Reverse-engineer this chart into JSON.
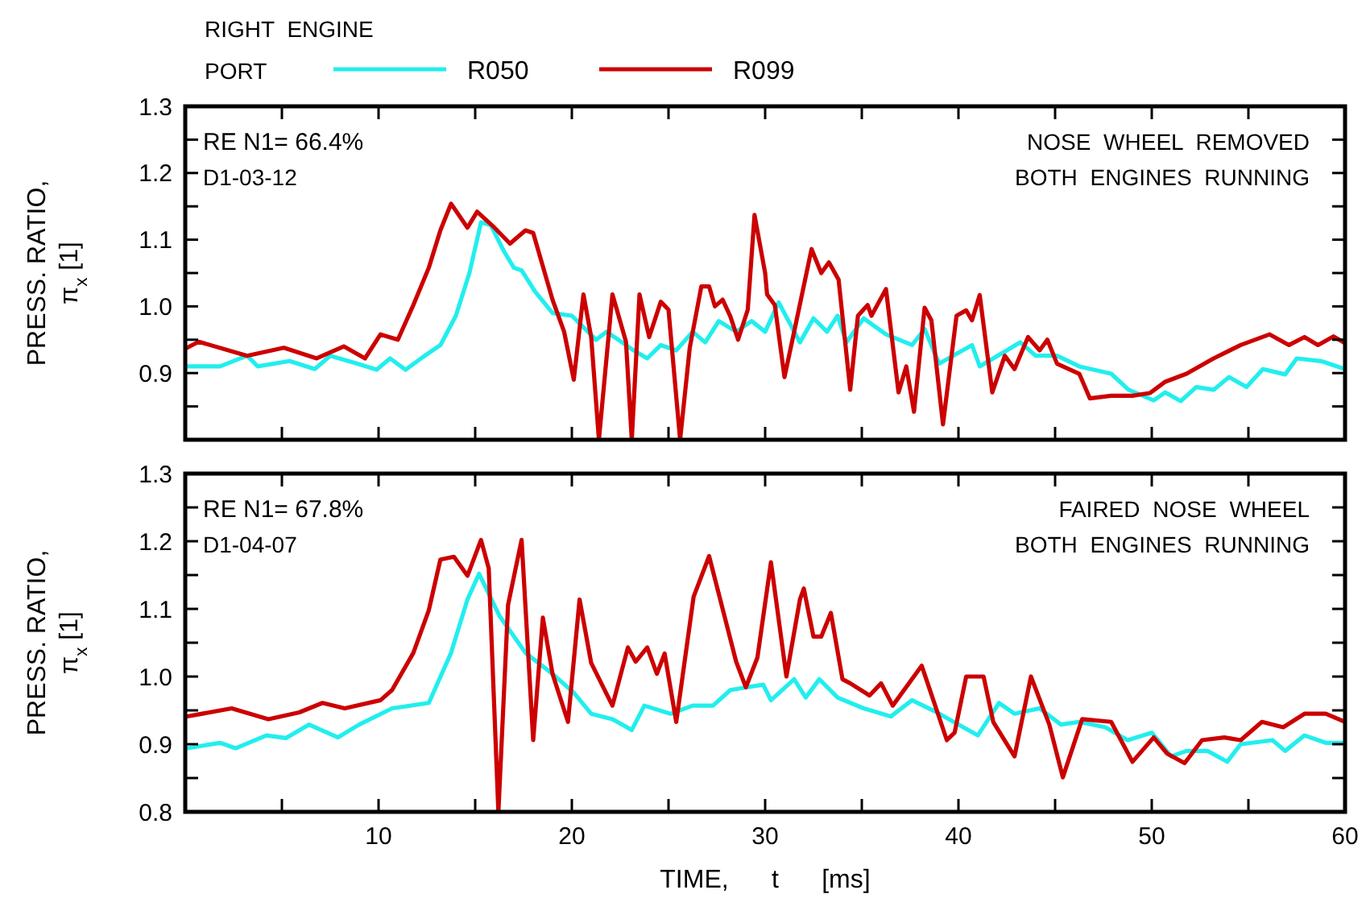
{
  "chart_data": [
    {
      "type": "line",
      "ylabel": "PRESS. RATIO,\nπ$_{x}$ [1]",
      "legend": "top",
      "legend_title": "RIGHT ENGINE\nPORT",
      "tick_labels": "y",
      "grid": false,
      "line_style": "solid",
      "marker": "none",
      "annotations": [
        "RE N1= 66.4%",
        "D1-03-12",
        "NOSE WHEEL REMOVED",
        "BOTH ENGINES RUNNING"
      ],
      "xlim": [
        0,
        60
      ],
      "xticks": [
        {
          "value": 5,
          "label": null
        },
        {
          "value": 10,
          "label": null
        },
        {
          "value": 15,
          "label": null
        },
        {
          "value": 20,
          "label": null
        },
        {
          "value": 25,
          "label": null
        },
        {
          "value": 30,
          "label": null
        },
        {
          "value": 35,
          "label": null
        },
        {
          "value": 40,
          "label": null
        },
        {
          "value": 45,
          "label": null
        },
        {
          "value": 50,
          "label": null
        },
        {
          "value": 55,
          "label": null
        },
        {
          "value": 60,
          "label": null
        }
      ],
      "ylim": [
        0.8,
        1.3
      ],
      "yticks": [
        {
          "value": 0.8,
          "label": null
        },
        {
          "value": 0.85,
          "label": null
        },
        0.9,
        {
          "value": 0.95,
          "label": null
        },
        {
          "value": 1,
          "label": "1.0"
        },
        {
          "value": 1.05,
          "label": null
        },
        1.1,
        {
          "value": 1.15,
          "label": null
        },
        1.2,
        {
          "value": 1.25,
          "label": null
        },
        1.3
      ],
      "series": [
        {
          "name": "R050",
          "color": "#22eeee",
          "x": [
            0.1,
            1.8,
            3.2,
            3.75,
            5.4,
            6.7,
            7.5,
            8.9,
            9.9,
            10.6,
            11.4,
            12.2,
            13.2,
            14.0,
            14.7,
            15.3,
            15.8,
            16.5,
            17.0,
            17.4,
            18.1,
            19.0,
            20.0,
            21.25,
            21.8,
            23.2,
            23.9,
            24.6,
            25.4,
            26.25,
            26.9,
            27.6,
            28.5,
            29.3,
            30.0,
            30.7,
            31.8,
            32.5,
            33.2,
            33.75,
            34.2,
            35.1,
            36.25,
            37.6,
            38.25,
            39.0,
            40.7,
            41.1,
            43.2,
            44.0,
            45.1,
            46.25,
            47.9,
            48.8,
            50.1,
            50.7,
            51.5,
            52.3,
            53.2,
            54.0,
            54.9,
            55.75,
            56.9,
            57.5,
            58.75,
            60
          ],
          "values": [
            0.91,
            0.91,
            0.926,
            0.91,
            0.918,
            0.906,
            0.926,
            0.914,
            0.905,
            0.922,
            0.905,
            0.922,
            0.942,
            0.986,
            1.05,
            1.126,
            1.122,
            1.082,
            1.058,
            1.054,
            1.022,
            0.99,
            0.986,
            0.95,
            0.962,
            0.934,
            0.922,
            0.942,
            0.934,
            0.962,
            0.946,
            0.978,
            0.962,
            0.978,
            0.962,
            1.006,
            0.946,
            0.982,
            0.962,
            0.986,
            0.946,
            0.982,
            0.958,
            0.942,
            0.966,
            0.914,
            0.942,
            0.91,
            0.946,
            0.926,
            0.926,
            0.91,
            0.899,
            0.875,
            0.859,
            0.871,
            0.858,
            0.879,
            0.875,
            0.894,
            0.879,
            0.906,
            0.898,
            0.922,
            0.918,
            0.906
          ]
        },
        {
          "name": "R099",
          "color": "#cc0000",
          "x": [
            0.1,
            0.7,
            3.2,
            5.1,
            6.8,
            8.2,
            9.3,
            10.1,
            11.0,
            11.8,
            12.6,
            13.2,
            13.75,
            14.6,
            15.1,
            16.0,
            16.8,
            17.6,
            18.0,
            19.0,
            19.6,
            20.1,
            20.6,
            21.0,
            21.4,
            22.1,
            22.8,
            23.1,
            23.5,
            24.0,
            24.6,
            25.0,
            25.6,
            26.1,
            26.7,
            27.1,
            27.4,
            27.8,
            28.2,
            28.6,
            29.1,
            29.45,
            30.0,
            30.1,
            30.5,
            31.0,
            31.5,
            32.4,
            32.9,
            33.3,
            33.8,
            34.4,
            34.8,
            35.3,
            35.5,
            36.25,
            36.9,
            37.3,
            37.7,
            38.25,
            38.6,
            39.2,
            39.9,
            40.4,
            40.7,
            41.1,
            41.75,
            42.4,
            42.9,
            43.6,
            44.2,
            44.6,
            45.1,
            46.25,
            46.8,
            47.9,
            49.0,
            49.9,
            50.7,
            51.8,
            53.2,
            54.6,
            56.1,
            57.1,
            57.9,
            58.6,
            59.4,
            60
          ],
          "values": [
            0.938,
            0.947,
            0.926,
            0.938,
            0.922,
            0.94,
            0.922,
            0.958,
            0.95,
            1.002,
            1.058,
            1.114,
            1.154,
            1.118,
            1.142,
            1.118,
            1.094,
            1.114,
            1.11,
            1.01,
            0.962,
            0.89,
            1.018,
            0.954,
            0.8,
            1.018,
            0.947,
            0.8,
            1.018,
            0.954,
            1.007,
            0.995,
            0.8,
            0.938,
            1.03,
            1.03,
            1.0,
            1.01,
            0.985,
            0.95,
            0.995,
            1.137,
            1.05,
            1.018,
            1.002,
            0.894,
            0.962,
            1.086,
            1.05,
            1.066,
            1.04,
            0.875,
            0.986,
            1.002,
            0.986,
            1.026,
            0.871,
            0.91,
            0.842,
            0.998,
            0.979,
            0.823,
            0.986,
            0.994,
            0.979,
            1.017,
            0.871,
            0.926,
            0.906,
            0.954,
            0.934,
            0.95,
            0.914,
            0.899,
            0.862,
            0.866,
            0.866,
            0.87,
            0.887,
            0.899,
            0.922,
            0.942,
            0.958,
            0.942,
            0.954,
            0.942,
            0.955,
            0.945
          ]
        }
      ]
    },
    {
      "type": "line",
      "ylabel": "PRESS. RATIO,\nπ$_{x}$ [1]",
      "xlabel": "TIME,      t      [ms]",
      "grid": false,
      "line_style": "solid",
      "marker": "none",
      "annotations": [
        "RE N1= 67.8%",
        "D1-04-07",
        "FAIRED NOSE WHEEL",
        "BOTH ENGINES RUNNING"
      ],
      "xlim": [
        0,
        60
      ],
      "xticks": [
        {
          "value": 5,
          "label": null
        },
        10,
        {
          "value": 15,
          "label": null
        },
        20,
        {
          "value": 25,
          "label": null
        },
        30,
        {
          "value": 35,
          "label": null
        },
        40,
        {
          "value": 45,
          "label": null
        },
        50,
        {
          "value": 55,
          "label": null
        },
        60
      ],
      "ylim": [
        0.8,
        1.3
      ],
      "yticks": [
        0.8,
        {
          "value": 0.85,
          "label": null
        },
        0.9,
        {
          "value": 0.95,
          "label": null
        },
        {
          "value": 1,
          "label": "1.0"
        },
        {
          "value": 1.05,
          "label": null
        },
        1.1,
        {
          "value": 1.15,
          "label": null
        },
        1.2,
        {
          "value": 1.25,
          "label": null
        },
        1.3
      ],
      "series": [
        {
          "color": "#22eeee",
          "x": [
            0.1,
            1.8,
            2.6,
            4.2,
            5.2,
            6.4,
            7.9,
            9.0,
            10.7,
            12.6,
            13.75,
            14.6,
            15.2,
            16.25,
            17.6,
            19.0,
            20.1,
            21.0,
            22.1,
            23.1,
            23.75,
            25.1,
            26.25,
            27.3,
            28.2,
            29.0,
            29.9,
            30.3,
            31.5,
            32.1,
            32.8,
            33.75,
            35.1,
            36.5,
            37.6,
            38.75,
            39.75,
            41.0,
            42.1,
            42.9,
            44.2,
            45.3,
            46.25,
            47.6,
            48.75,
            50.0,
            51.0,
            51.8,
            52.9,
            53.9,
            54.6,
            56.25,
            56.9,
            57.9,
            59.0,
            60
          ],
          "values": [
            0.894,
            0.902,
            0.894,
            0.913,
            0.909,
            0.929,
            0.91,
            0.929,
            0.953,
            0.961,
            1.035,
            1.114,
            1.152,
            1.09,
            1.035,
            1.004,
            0.976,
            0.945,
            0.937,
            0.921,
            0.957,
            0.945,
            0.957,
            0.957,
            0.98,
            0.984,
            0.988,
            0.965,
            0.996,
            0.969,
            0.996,
            0.969,
            0.953,
            0.941,
            0.965,
            0.949,
            0.933,
            0.913,
            0.961,
            0.945,
            0.953,
            0.929,
            0.933,
            0.925,
            0.906,
            0.917,
            0.882,
            0.89,
            0.89,
            0.874,
            0.9,
            0.906,
            0.89,
            0.913,
            0.902,
            0.902
          ]
        },
        {
          "color": "#cc0000",
          "x": [
            0.1,
            2.4,
            4.3,
            5.9,
            7.1,
            8.25,
            10.1,
            10.7,
            11.8,
            12.6,
            13.2,
            13.9,
            14.6,
            15.3,
            15.7,
            16.2,
            16.7,
            17.4,
            18.0,
            18.5,
            19.0,
            19.8,
            20.4,
            21.0,
            22.1,
            22.9,
            23.3,
            23.9,
            24.4,
            24.8,
            25.4,
            26.3,
            27.1,
            28.5,
            29.0,
            29.6,
            30.3,
            31.1,
            31.8,
            32.0,
            32.5,
            32.9,
            33.4,
            34.0,
            34.4,
            35.4,
            36.0,
            36.6,
            38.1,
            39.4,
            39.8,
            40.4,
            41.3,
            41.8,
            42.9,
            43.75,
            44.7,
            45.4,
            46.4,
            47.9,
            49.0,
            50.1,
            50.8,
            51.7,
            52.6,
            53.75,
            54.6,
            55.7,
            56.8,
            57.9,
            59.0,
            60
          ],
          "values": [
            0.941,
            0.953,
            0.937,
            0.947,
            0.961,
            0.953,
            0.965,
            0.98,
            1.035,
            1.098,
            1.173,
            1.177,
            1.149,
            1.202,
            1.16,
            0.8,
            1.106,
            1.202,
            0.906,
            1.087,
            1.004,
            0.933,
            1.114,
            1.02,
            0.957,
            1.043,
            1.022,
            1.043,
            1.004,
            1.034,
            0.933,
            1.118,
            1.178,
            1.022,
            0.984,
            1.028,
            1.169,
            1.0,
            1.114,
            1.13,
            1.059,
            1.059,
            1.094,
            0.996,
            0.99,
            0.972,
            0.99,
            0.957,
            1.016,
            0.906,
            0.917,
            1.0,
            1.0,
            0.933,
            0.882,
            1.0,
            0.929,
            0.851,
            0.937,
            0.933,
            0.874,
            0.91,
            0.886,
            0.872,
            0.906,
            0.91,
            0.906,
            0.933,
            0.925,
            0.945,
            0.945,
            0.933
          ]
        }
      ]
    }
  ]
}
